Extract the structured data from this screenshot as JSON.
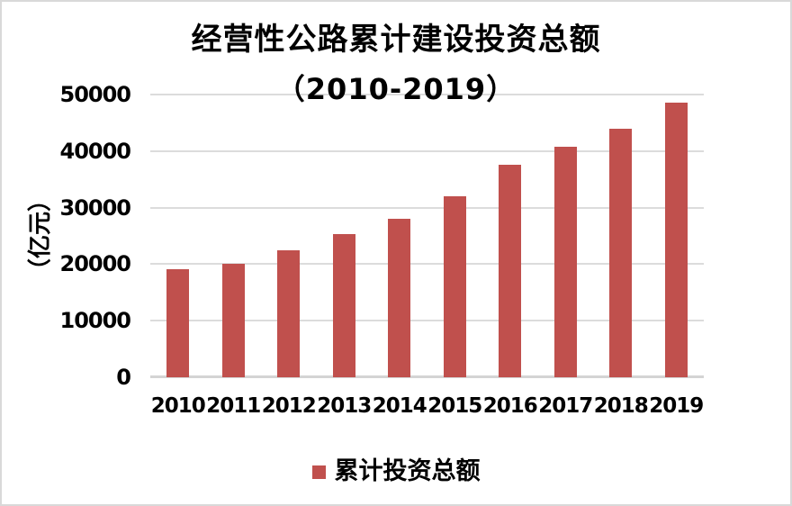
{
  "chart": {
    "background": "#ffffff",
    "border_color": "#d9d9d9"
  },
  "chart_data": {
    "type": "bar",
    "title_line1": "经营性公路累计建设投资总额",
    "title_line2": "（2010-2019）",
    "ylabel": "（亿元）",
    "xlabel": "",
    "categories": [
      "2010",
      "2011",
      "2012",
      "2013",
      "2014",
      "2015",
      "2016",
      "2017",
      "2018",
      "2019"
    ],
    "series": [
      {
        "name": "累计投资总额",
        "values": [
          19100,
          20000,
          22400,
          25300,
          28000,
          32000,
          37600,
          40800,
          43900,
          48500
        ]
      }
    ],
    "ylim": [
      0,
      50000
    ],
    "yticks": [
      0,
      10000,
      20000,
      30000,
      40000,
      50000
    ],
    "grid": "horizontal",
    "legend_position": "bottom",
    "bar_color": "#c0504d",
    "gridline_color": "#dcdcdc",
    "axis_line_color": "#d4d4d4",
    "text_color": "#000000"
  }
}
